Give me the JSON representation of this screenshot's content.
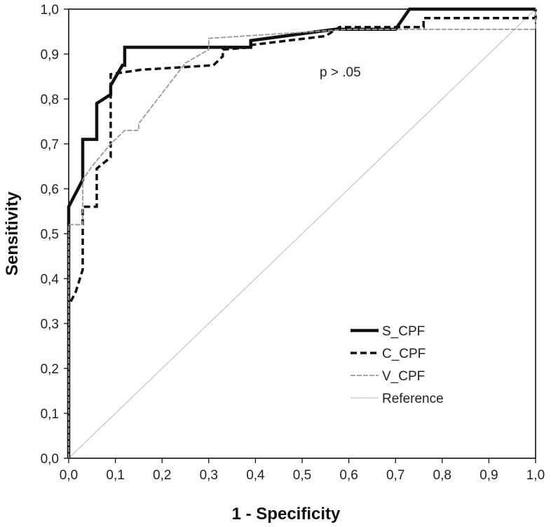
{
  "chart_data": {
    "type": "line",
    "title": "",
    "xlabel": "1 - Specificity",
    "ylabel": "Sensitivity",
    "xlim": [
      0,
      1
    ],
    "ylim": [
      0,
      1
    ],
    "grid": false,
    "legend_position": "bottom-right",
    "annotation": "p > .05",
    "x_ticks": [
      "0,0",
      "0,1",
      "0,2",
      "0,3",
      "0,4",
      "0,5",
      "0,6",
      "0,7",
      "0,8",
      "0,9",
      "1,0"
    ],
    "y_ticks": [
      "0,0",
      "0,1",
      "0,2",
      "0,3",
      "0,4",
      "0,5",
      "0,6",
      "0,7",
      "0,8",
      "0,9",
      "1,0"
    ],
    "series": [
      {
        "name": "S_CPF",
        "color": "#111111",
        "style": "solid-thick",
        "points": [
          [
            0,
            0
          ],
          [
            0,
            0.56
          ],
          [
            0.03,
            0.62
          ],
          [
            0.03,
            0.71
          ],
          [
            0.06,
            0.71
          ],
          [
            0.06,
            0.79
          ],
          [
            0.09,
            0.81
          ],
          [
            0.09,
            0.83
          ],
          [
            0.115,
            0.875
          ],
          [
            0.12,
            0.875
          ],
          [
            0.12,
            0.915
          ],
          [
            0.39,
            0.915
          ],
          [
            0.39,
            0.93
          ],
          [
            0.57,
            0.955
          ],
          [
            0.7,
            0.955
          ],
          [
            0.73,
            1.0
          ],
          [
            1.0,
            1.0
          ]
        ]
      },
      {
        "name": "C_CPF",
        "color": "#111111",
        "style": "dashed",
        "points": [
          [
            0,
            0
          ],
          [
            0,
            0.34
          ],
          [
            0.015,
            0.37
          ],
          [
            0.03,
            0.42
          ],
          [
            0.03,
            0.56
          ],
          [
            0.06,
            0.56
          ],
          [
            0.06,
            0.645
          ],
          [
            0.09,
            0.67
          ],
          [
            0.09,
            0.855
          ],
          [
            0.155,
            0.865
          ],
          [
            0.31,
            0.875
          ],
          [
            0.33,
            0.895
          ],
          [
            0.33,
            0.91
          ],
          [
            0.39,
            0.915
          ],
          [
            0.39,
            0.92
          ],
          [
            0.55,
            0.94
          ],
          [
            0.58,
            0.96
          ],
          [
            0.76,
            0.96
          ],
          [
            0.76,
            0.98
          ],
          [
            1.0,
            0.98
          ],
          [
            1.0,
            1.0
          ]
        ]
      },
      {
        "name": "V_CPF",
        "color": "#9a9a9a",
        "style": "dashed-thin",
        "points": [
          [
            0,
            0
          ],
          [
            0,
            0.52
          ],
          [
            0.03,
            0.52
          ],
          [
            0.03,
            0.62
          ],
          [
            0.05,
            0.65
          ],
          [
            0.09,
            0.7
          ],
          [
            0.12,
            0.73
          ],
          [
            0.15,
            0.73
          ],
          [
            0.15,
            0.745
          ],
          [
            0.25,
            0.88
          ],
          [
            0.3,
            0.91
          ],
          [
            0.3,
            0.935
          ],
          [
            0.6,
            0.955
          ],
          [
            1.0,
            0.955
          ],
          [
            1.0,
            1.0
          ]
        ]
      },
      {
        "name": "Reference",
        "color": "#c4c4c4",
        "style": "solid-thin",
        "points": [
          [
            0,
            0
          ],
          [
            1,
            1
          ]
        ]
      }
    ]
  }
}
